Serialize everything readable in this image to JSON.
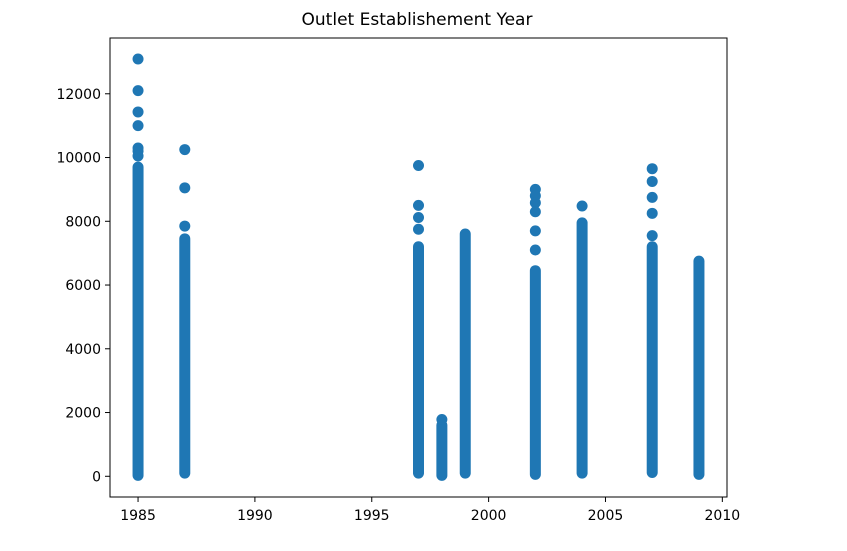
{
  "chart_data": {
    "type": "scatter",
    "title": "Outlet Establishement Year",
    "xlabel": "",
    "ylabel": "",
    "xlim": [
      1983.8,
      2010.2
    ],
    "ylim": [
      -650,
      13750
    ],
    "x_ticks": [
      1985,
      1990,
      1995,
      2000,
      2005,
      2010
    ],
    "y_ticks": [
      0,
      2000,
      4000,
      6000,
      8000,
      10000,
      12000
    ],
    "x_tick_labels": [
      "1985",
      "1990",
      "1995",
      "2000",
      "2005",
      "2010"
    ],
    "y_tick_labels": [
      "0",
      "2000",
      "4000",
      "6000",
      "8000",
      "10000",
      "12000"
    ],
    "grid": false,
    "marker_color": "#1f77b4",
    "series": [
      {
        "columns": [
          {
            "x": 1985,
            "range": [
              30,
              9700
            ],
            "values": [
              13090,
              12100,
              11430,
              11000,
              10300,
              10200,
              10050
            ]
          },
          {
            "x": 1987,
            "range": [
              100,
              7450
            ],
            "values": [
              10250,
              9050,
              7850
            ]
          },
          {
            "x": 1997,
            "range": [
              100,
              7200
            ],
            "values": [
              9750,
              8500,
              8120,
              7750
            ]
          },
          {
            "x": 1998,
            "range": [
              30,
              1600
            ],
            "values": [
              1780
            ]
          },
          {
            "x": 1999,
            "range": [
              100,
              7600
            ],
            "values": []
          },
          {
            "x": 2002,
            "range": [
              60,
              6450
            ],
            "values": [
              9000,
              8800,
              8580,
              8300,
              7700,
              7100
            ]
          },
          {
            "x": 2004,
            "range": [
              100,
              7950
            ],
            "values": [
              8480
            ]
          },
          {
            "x": 2007,
            "range": [
              120,
              7200
            ],
            "values": [
              9650,
              9250,
              8750,
              8250,
              7550
            ]
          },
          {
            "x": 2009,
            "range": [
              60,
              6750
            ],
            "values": []
          }
        ]
      }
    ]
  }
}
